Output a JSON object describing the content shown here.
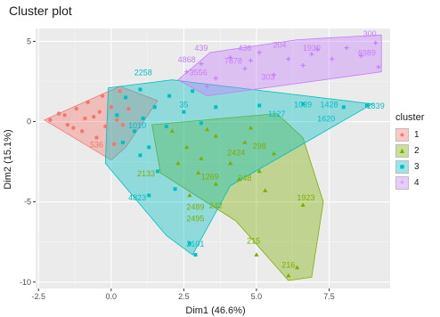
{
  "chart_data": {
    "type": "scatter",
    "title": "Cluster plot",
    "xlabel": "Dim1 (46.6%)",
    "ylabel": "Dim2 (15.1%)",
    "xlim": [
      -2.6,
      9.6
    ],
    "ylim": [
      -10.4,
      5.8
    ],
    "xticks": [
      {
        "value": -2.5,
        "label": "-2.5"
      },
      {
        "value": 0,
        "label": "0.0"
      },
      {
        "value": 2.5,
        "label": "2.5"
      },
      {
        "value": 5,
        "label": "5.0"
      },
      {
        "value": 7.5,
        "label": "7.5"
      }
    ],
    "yticks": [
      {
        "value": 5,
        "label": "5"
      },
      {
        "value": 0,
        "label": "0"
      },
      {
        "value": -5,
        "label": "-5"
      },
      {
        "value": -10,
        "label": "-10"
      }
    ],
    "grid": true,
    "legend": {
      "title": "cluster",
      "position": "right"
    },
    "series": [
      {
        "name": "1",
        "color": "#F8766D",
        "marker": "circle",
        "hull": [
          [
            -2.3,
            0.1
          ],
          [
            0.3,
            2.2
          ],
          [
            1.6,
            1.3
          ],
          [
            0.5,
            -1.6
          ],
          [
            0.0,
            -2.4
          ]
        ],
        "points": [
          [
            -2.1,
            0.1
          ],
          [
            -1.8,
            0.5
          ],
          [
            -1.5,
            -0.2
          ],
          [
            -1.2,
            0.8
          ],
          [
            -1.0,
            -0.6
          ],
          [
            -0.8,
            1.2
          ],
          [
            -0.6,
            0.3
          ],
          [
            -0.5,
            -1.0
          ],
          [
            -0.3,
            1.6
          ],
          [
            -0.2,
            -0.3
          ],
          [
            0.0,
            0.9
          ],
          [
            0.1,
            -1.4
          ],
          [
            0.3,
            1.9
          ],
          [
            0.4,
            -0.2
          ],
          [
            0.6,
            0.8
          ],
          [
            -1.6,
            0.4
          ],
          [
            -1.3,
            -0.4
          ],
          [
            -0.9,
            0.2
          ],
          [
            -0.4,
            0.6
          ],
          [
            0.2,
            0.1
          ]
        ],
        "labels": [
          {
            "x": -0.5,
            "y": -1.6,
            "text": "536"
          }
        ]
      },
      {
        "name": "2",
        "color": "#7CAE00",
        "marker": "triangle",
        "hull": [
          [
            1.4,
            -0.2
          ],
          [
            5.7,
            0.5
          ],
          [
            6.6,
            -1.0
          ],
          [
            7.3,
            -5.0
          ],
          [
            6.9,
            -9.7
          ],
          [
            6.1,
            -9.9
          ],
          [
            4.3,
            -6.2
          ],
          [
            1.7,
            -3.2
          ]
        ],
        "points": [
          [
            2.1,
            -0.6
          ],
          [
            2.6,
            -1.6
          ],
          [
            3.1,
            -2.3
          ],
          [
            3.6,
            -0.9
          ],
          [
            4.1,
            -2.6
          ],
          [
            4.6,
            -1.3
          ],
          [
            5.1,
            -3.1
          ],
          [
            5.6,
            -2.0
          ],
          [
            3.0,
            -3.2
          ],
          [
            3.6,
            -3.9
          ],
          [
            4.4,
            -3.6
          ],
          [
            2.7,
            -4.6
          ],
          [
            5.3,
            -4.3
          ],
          [
            6.6,
            -5.2
          ],
          [
            5.0,
            -8.3
          ],
          [
            6.4,
            -9.1
          ],
          [
            6.1,
            -9.6
          ],
          [
            3.3,
            -0.5
          ],
          [
            4.8,
            -0.4
          ],
          [
            2.3,
            -2.6
          ]
        ],
        "labels": [
          {
            "x": 6.7,
            "y": -4.9,
            "text": "1923"
          },
          {
            "x": 3.6,
            "y": -5.4,
            "text": "242"
          },
          {
            "x": 2.9,
            "y": -5.5,
            "text": "2489"
          },
          {
            "x": 2.9,
            "y": -6.2,
            "text": "2495"
          },
          {
            "x": 4.6,
            "y": -3.7,
            "text": "248"
          },
          {
            "x": 1.2,
            "y": -3.4,
            "text": "2133"
          },
          {
            "x": 4.9,
            "y": -7.6,
            "text": "215"
          },
          {
            "x": 6.1,
            "y": -9.1,
            "text": "216"
          },
          {
            "x": 3.4,
            "y": -3.6,
            "text": "1269"
          },
          {
            "x": 4.3,
            "y": -2.1,
            "text": "2424"
          },
          {
            "x": 5.1,
            "y": -1.7,
            "text": "298"
          }
        ]
      },
      {
        "name": "3",
        "color": "#00BFC4",
        "marker": "square",
        "hull": [
          [
            -0.1,
            2.1
          ],
          [
            2.1,
            2.6
          ],
          [
            9.0,
            1.1
          ],
          [
            8.8,
            0.9
          ],
          [
            4.1,
            -4.0
          ],
          [
            2.8,
            -8.3
          ],
          [
            1.9,
            -7.1
          ],
          [
            -0.2,
            -2.6
          ]
        ],
        "points": [
          [
            0.5,
            1.5
          ],
          [
            1.0,
            2.0
          ],
          [
            1.5,
            0.9
          ],
          [
            2.0,
            1.6
          ],
          [
            0.8,
            -0.6
          ],
          [
            1.3,
            -1.6
          ],
          [
            1.9,
            -0.3
          ],
          [
            2.5,
            0.6
          ],
          [
            0.4,
            -1.3
          ],
          [
            1.0,
            -2.1
          ],
          [
            1.6,
            -3.1
          ],
          [
            2.2,
            -4.2
          ],
          [
            1.3,
            -4.6
          ],
          [
            2.7,
            -7.6
          ],
          [
            2.9,
            -8.3
          ],
          [
            3.6,
            0.9
          ],
          [
            5.1,
            1.0
          ],
          [
            6.6,
            1.1
          ],
          [
            8.0,
            0.9
          ],
          [
            8.8,
            1.0
          ],
          [
            0.2,
            0.4
          ],
          [
            1.1,
            0.2
          ],
          [
            2.8,
            1.9
          ],
          [
            3.1,
            -0.1
          ]
        ],
        "labels": [
          {
            "x": 1.1,
            "y": 2.9,
            "text": "2258"
          },
          {
            "x": 2.5,
            "y": 0.9,
            "text": "35"
          },
          {
            "x": 7.5,
            "y": 0.9,
            "text": "1428"
          },
          {
            "x": 9.1,
            "y": 0.8,
            "text": "1839"
          },
          {
            "x": 6.6,
            "y": 0.9,
            "text": "1039"
          },
          {
            "x": 5.7,
            "y": 0.3,
            "text": "1127"
          },
          {
            "x": 0.9,
            "y": -4.9,
            "text": "4823"
          },
          {
            "x": 2.9,
            "y": -7.8,
            "text": "2101"
          },
          {
            "x": 0.9,
            "y": -0.4,
            "text": "1010"
          },
          {
            "x": 7.4,
            "y": 0.0,
            "text": "1620"
          }
        ]
      },
      {
        "name": "4",
        "color": "#C77CFF",
        "marker": "cross",
        "hull": [
          [
            2.3,
            2.6
          ],
          [
            3.4,
            4.3
          ],
          [
            6.4,
            5.1
          ],
          [
            9.3,
            5.4
          ],
          [
            9.3,
            3.1
          ],
          [
            3.3,
            1.6
          ]
        ],
        "points": [
          [
            2.6,
            3.1
          ],
          [
            3.1,
            3.6
          ],
          [
            3.6,
            2.7
          ],
          [
            4.1,
            4.0
          ],
          [
            4.6,
            3.3
          ],
          [
            5.1,
            4.3
          ],
          [
            5.6,
            2.9
          ],
          [
            6.1,
            3.9
          ],
          [
            6.6,
            3.5
          ],
          [
            7.1,
            4.5
          ],
          [
            7.6,
            3.9
          ],
          [
            8.1,
            4.6
          ],
          [
            8.6,
            4.1
          ],
          [
            9.1,
            4.9
          ],
          [
            9.2,
            3.4
          ],
          [
            3.3,
            2.2
          ],
          [
            4.8,
            3.8
          ],
          [
            6.9,
            4.2
          ]
        ],
        "labels": [
          {
            "x": 8.9,
            "y": 5.3,
            "text": "300"
          },
          {
            "x": 5.8,
            "y": 4.6,
            "text": "204"
          },
          {
            "x": 4.6,
            "y": 4.4,
            "text": "436"
          },
          {
            "x": 3.1,
            "y": 4.4,
            "text": "439"
          },
          {
            "x": 2.6,
            "y": 3.7,
            "text": "4868"
          },
          {
            "x": 3.0,
            "y": 2.9,
            "text": "3556"
          },
          {
            "x": 6.9,
            "y": 4.4,
            "text": "1930"
          },
          {
            "x": 8.8,
            "y": 4.1,
            "text": "6989"
          },
          {
            "x": 4.2,
            "y": 3.6,
            "text": "7878"
          },
          {
            "x": 5.4,
            "y": 2.6,
            "text": "303"
          }
        ]
      }
    ]
  }
}
